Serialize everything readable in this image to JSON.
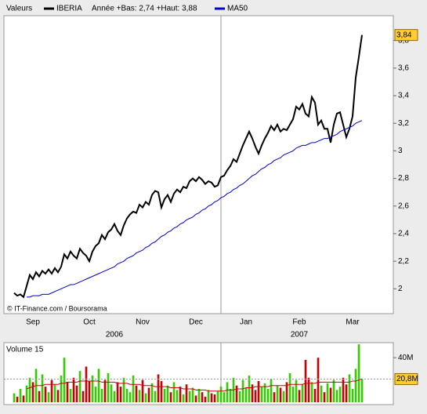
{
  "chart_data": [
    {
      "type": "line",
      "legend_header": "Valeurs",
      "range_note": "Année +Bas: 2,74 +Haut: 3,88",
      "source": "© IT-Finance.com / Boursorama",
      "years": [
        "2006",
        "2007"
      ],
      "categories": [
        null,
        null,
        null,
        null,
        null,
        null,
        "Sep",
        null,
        null,
        null,
        null,
        null,
        null,
        null,
        null,
        null,
        null,
        null,
        null,
        null,
        null,
        null,
        null,
        null,
        "Oct",
        null,
        null,
        null,
        null,
        null,
        null,
        null,
        null,
        null,
        null,
        null,
        null,
        null,
        null,
        null,
        null,
        "Nov",
        null,
        null,
        null,
        null,
        null,
        null,
        null,
        null,
        null,
        null,
        null,
        null,
        null,
        null,
        null,
        null,
        "Dec",
        null,
        null,
        null,
        null,
        null,
        null,
        null,
        null,
        null,
        null,
        null,
        null,
        null,
        null,
        null,
        "Jan",
        null,
        null,
        null,
        null,
        null,
        null,
        null,
        null,
        null,
        null,
        null,
        null,
        null,
        null,
        null,
        null,
        "Feb",
        null,
        null,
        null,
        null,
        null,
        null,
        null,
        null,
        null,
        null,
        null,
        null,
        null,
        null,
        null,
        null,
        "Mar",
        null,
        null,
        null
      ],
      "series": [
        {
          "name": "IBERIA",
          "color": "#000000",
          "last_label": "3,84",
          "values": [
            1.97,
            1.95,
            1.96,
            1.94,
            2.02,
            2.1,
            2.07,
            2.12,
            2.09,
            2.13,
            2.11,
            2.14,
            2.11,
            2.15,
            2.12,
            2.16,
            2.25,
            2.22,
            2.27,
            2.24,
            2.22,
            2.29,
            2.26,
            2.24,
            2.2,
            2.27,
            2.31,
            2.33,
            2.39,
            2.36,
            2.41,
            2.43,
            2.47,
            2.42,
            2.39,
            2.46,
            2.51,
            2.54,
            2.56,
            2.55,
            2.61,
            2.59,
            2.63,
            2.61,
            2.68,
            2.71,
            2.7,
            2.59,
            2.65,
            2.68,
            2.63,
            2.69,
            2.72,
            2.7,
            2.74,
            2.73,
            2.78,
            2.8,
            2.78,
            2.81,
            2.79,
            2.76,
            2.78,
            2.77,
            2.74,
            2.75,
            2.81,
            2.82,
            2.86,
            2.89,
            2.94,
            2.92,
            2.98,
            3.04,
            3.09,
            3.14,
            3.09,
            3.03,
            2.98,
            3.04,
            3.09,
            3.13,
            3.18,
            3.15,
            3.19,
            3.14,
            3.16,
            3.15,
            3.19,
            3.23,
            3.32,
            3.3,
            3.34,
            3.27,
            3.25,
            3.39,
            3.35,
            3.19,
            3.22,
            3.16,
            3.16,
            3.06,
            3.19,
            3.27,
            3.28,
            3.19,
            3.1,
            3.16,
            3.25,
            3.53,
            3.68,
            3.84
          ]
        },
        {
          "name": "MA50",
          "color": "#0000cc",
          "values": [
            null,
            null,
            null,
            null,
            1.94,
            1.94,
            1.95,
            1.95,
            1.95,
            1.96,
            1.96,
            1.96,
            1.97,
            1.98,
            1.99,
            2.0,
            2.01,
            2.02,
            2.03,
            2.03,
            2.04,
            2.05,
            2.06,
            2.07,
            2.08,
            2.09,
            2.1,
            2.11,
            2.12,
            2.13,
            2.14,
            2.15,
            2.16,
            2.18,
            2.19,
            2.2,
            2.22,
            2.23,
            2.24,
            2.26,
            2.27,
            2.28,
            2.3,
            2.31,
            2.33,
            2.34,
            2.36,
            2.38,
            2.39,
            2.41,
            2.42,
            2.44,
            2.45,
            2.47,
            2.48,
            2.5,
            2.51,
            2.52,
            2.54,
            2.55,
            2.57,
            2.58,
            2.6,
            2.61,
            2.63,
            2.64,
            2.66,
            2.67,
            2.69,
            2.7,
            2.72,
            2.73,
            2.75,
            2.76,
            2.78,
            2.8,
            2.82,
            2.83,
            2.85,
            2.87,
            2.88,
            2.9,
            2.91,
            2.93,
            2.94,
            2.95,
            2.97,
            2.98,
            2.99,
            3.0,
            3.02,
            3.03,
            3.04,
            3.04,
            3.05,
            3.06,
            3.06,
            3.07,
            3.08,
            3.09,
            3.09,
            3.1,
            3.11,
            3.12,
            3.14,
            3.15,
            3.16,
            3.17,
            3.18,
            3.2,
            3.21,
            3.22
          ]
        }
      ],
      "ylim": [
        1.82,
        3.98
      ],
      "yticks": [
        2,
        {
          "value": 2.2,
          "label": "2,2"
        },
        {
          "value": 2.4,
          "label": "2,4"
        },
        {
          "value": 2.6,
          "label": "2,6"
        },
        {
          "value": 2.8,
          "label": "2,8"
        },
        3,
        {
          "value": 3.2,
          "label": "3,2"
        },
        {
          "value": 3.4,
          "label": "3,4"
        },
        {
          "value": 3.6,
          "label": "3,6"
        },
        {
          "value": 3.8,
          "label": "3,8"
        }
      ],
      "grid": false
    },
    {
      "type": "bar",
      "title": "Volume 15",
      "up_color": "#33cc00",
      "down_color": "#cc0000",
      "series": [
        {
          "last_label": "20,8M",
          "values": [
            8,
            5,
            12,
            6,
            15,
            22,
            18,
            30,
            10,
            25,
            14,
            9,
            20,
            16,
            11,
            24,
            40,
            18,
            12,
            22,
            15,
            28,
            10,
            32,
            19,
            24,
            14,
            30,
            12,
            20,
            26,
            16,
            10,
            18,
            14,
            22,
            12,
            9,
            24,
            15,
            11,
            20,
            8,
            13,
            17,
            10,
            25,
            19,
            12,
            15,
            9,
            18,
            11,
            14,
            7,
            16,
            10,
            13,
            6,
            12,
            9,
            5,
            11,
            8,
            7,
            10,
            14,
            9,
            18,
            12,
            22,
            15,
            10,
            20,
            13,
            24,
            16,
            11,
            19,
            14,
            17,
            12,
            21,
            9,
            15,
            13,
            10,
            18,
            26,
            14,
            20,
            11,
            16,
            38,
            22,
            18,
            12,
            40,
            15,
            9,
            17,
            13,
            20,
            11,
            14,
            22,
            16,
            25,
            12,
            30,
            52,
            20.8
          ]
        },
        {
          "color": "#cc0000",
          "values": [
            null,
            null,
            null,
            null,
            12,
            13,
            14,
            15,
            15,
            15,
            16,
            16,
            16,
            16,
            16,
            17,
            17,
            18,
            18,
            18,
            18,
            19,
            19,
            19,
            19,
            19,
            19,
            19,
            18,
            18,
            18,
            18,
            18,
            17,
            17,
            17,
            17,
            16,
            16,
            16,
            16,
            15,
            15,
            15,
            15,
            14,
            14,
            14,
            14,
            14,
            13,
            13,
            13,
            13,
            12,
            12,
            12,
            12,
            11,
            11,
            11,
            11,
            10,
            10,
            10,
            10,
            10,
            10,
            11,
            11,
            11,
            12,
            12,
            12,
            13,
            13,
            13,
            14,
            14,
            14,
            14,
            14,
            15,
            15,
            15,
            15,
            15,
            15,
            16,
            16,
            16,
            16,
            16,
            17,
            17,
            17,
            17,
            18,
            18,
            18,
            18,
            18,
            18,
            18,
            18,
            18,
            18,
            18,
            19,
            19,
            20,
            21
          ]
        }
      ],
      "ylim": [
        0,
        53.5
      ],
      "yticks": [
        {
          "value": 40,
          "label": "40M"
        }
      ]
    }
  ]
}
